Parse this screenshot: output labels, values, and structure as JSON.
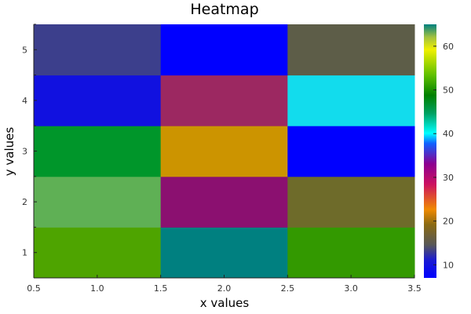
{
  "chart_data": {
    "type": "heatmap",
    "title": "Heatmap",
    "xlabel": "x values",
    "ylabel": "y values",
    "x": [
      1.0,
      2.0,
      3.0
    ],
    "y": [
      1,
      2,
      3,
      4,
      5
    ],
    "xlim": [
      0.5,
      3.5
    ],
    "ylim": [
      0.5,
      5.5
    ],
    "x_ticks": [
      0.5,
      1.0,
      1.5,
      2.0,
      2.5,
      3.0,
      3.5
    ],
    "x_tick_labels": [
      "0.5",
      "1.0",
      "1.5",
      "2.0",
      "2.5",
      "3.0",
      "3.5"
    ],
    "y_ticks": [
      1,
      2,
      3,
      4,
      5
    ],
    "y_tick_labels": [
      "1",
      "2",
      "3",
      "4",
      "5"
    ],
    "z": [
      [
        53,
        41,
        50
      ],
      [
        55,
        30,
        17
      ],
      [
        48,
        20,
        7
      ],
      [
        9,
        30,
        40
      ],
      [
        13,
        7,
        15
      ]
    ],
    "cell_colors": [
      [
        "#4ea400",
        "#008080",
        "#339900"
      ],
      [
        "#5fb055",
        "#8b1070",
        "#6e6b2a"
      ],
      [
        "#00962a",
        "#cc9400",
        "#0000ff"
      ],
      [
        "#1111e0",
        "#9c2861",
        "#12dced"
      ],
      [
        "#3c3f8c",
        "#0000ff",
        "#5d5d48"
      ]
    ],
    "colorbar": {
      "zlim": [
        7,
        65
      ],
      "ticks": [
        10,
        20,
        30,
        40,
        50,
        60
      ],
      "tick_labels": [
        "10",
        "20",
        "30",
        "40",
        "50",
        "60"
      ],
      "stops": [
        {
          "v": 0.0,
          "c": "#0000ff"
        },
        {
          "v": 0.07,
          "c": "#1a1ad2"
        },
        {
          "v": 0.13,
          "c": "#585858"
        },
        {
          "v": 0.21,
          "c": "#8a6a12"
        },
        {
          "v": 0.27,
          "c": "#f08a00"
        },
        {
          "v": 0.37,
          "c": "#cc1060"
        },
        {
          "v": 0.45,
          "c": "#8c0090"
        },
        {
          "v": 0.53,
          "c": "#1060ff"
        },
        {
          "v": 0.57,
          "c": "#00ffff"
        },
        {
          "v": 0.65,
          "c": "#00a060"
        },
        {
          "v": 0.72,
          "c": "#008000"
        },
        {
          "v": 0.8,
          "c": "#60c000"
        },
        {
          "v": 0.9,
          "c": "#f0f000"
        },
        {
          "v": 0.95,
          "c": "#a0c040"
        },
        {
          "v": 1.0,
          "c": "#008080"
        }
      ]
    },
    "grid": false,
    "legend": "colorbar-right"
  }
}
